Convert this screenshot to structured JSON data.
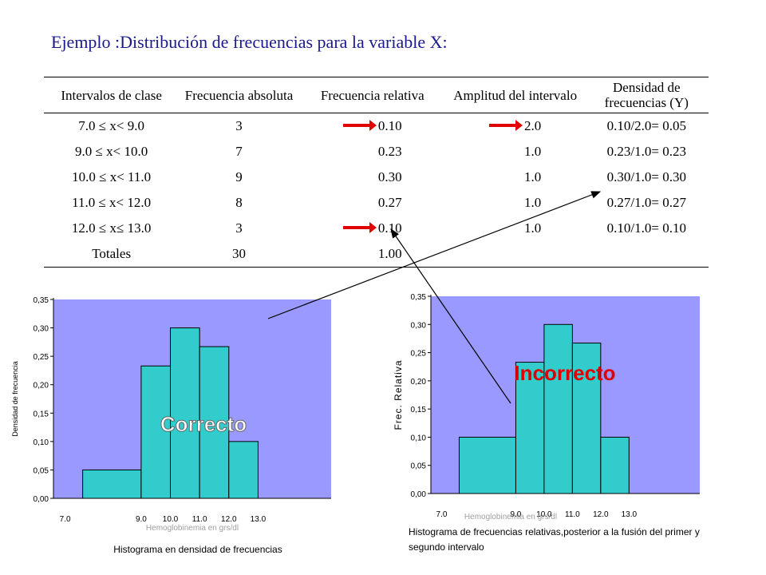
{
  "title": "Ejemplo :Distribución de frecuencias para la variable X:",
  "table": {
    "headers": [
      "Intervalos de clase",
      "Frecuencia absoluta",
      "Frecuencia relativa",
      "Amplitud del intervalo",
      "Densidad de frecuencias (Y)"
    ],
    "rows": [
      {
        "interval": "7.0 ≤ x< 9.0",
        "abs": "3",
        "rel": "0.10",
        "amp": "2.0",
        "dens": "0.10/2.0= 0.05",
        "rel_arrow": true,
        "amp_arrow": true
      },
      {
        "interval": "9.0 ≤ x< 10.0",
        "abs": "7",
        "rel": "0.23",
        "amp": "1.0",
        "dens": "0.23/1.0= 0.23",
        "rel_arrow": false,
        "amp_arrow": false
      },
      {
        "interval": "10.0 ≤ x< 11.0",
        "abs": "9",
        "rel": "0.30",
        "amp": "1.0",
        "dens": "0.30/1.0= 0.30",
        "rel_arrow": false,
        "amp_arrow": false
      },
      {
        "interval": "11.0 ≤ x< 12.0",
        "abs": "8",
        "rel": "0.27",
        "amp": "1.0",
        "dens": "0.27/1.0= 0.27",
        "rel_arrow": false,
        "amp_arrow": false
      },
      {
        "interval": "12.0 ≤ x≤ 13.0",
        "abs": "3",
        "rel": "0.10",
        "amp": "1.0",
        "dens": "0.10/1.0= 0.10",
        "rel_arrow": true,
        "amp_arrow": false
      }
    ],
    "totals": {
      "label": "Totales",
      "abs": "30",
      "rel": "1.00"
    }
  },
  "chart_data": [
    {
      "type": "bar",
      "xlabel": "Hemoglobinemia en grs/dl",
      "ylabel": "Densidad de frecuencia",
      "caption": "Histograma en densidad de frecuencias",
      "overlay_label": "Correcto",
      "ylim": [
        0,
        0.35
      ],
      "y_ticks": [
        0,
        0.05,
        0.1,
        0.15,
        0.2,
        0.25,
        0.3,
        0.35
      ],
      "y_tick_labels": [
        "0,00",
        "0,05",
        "0,10",
        "0,15",
        "0,20",
        "0,25",
        "0,30",
        "0,35"
      ],
      "x_tick_labels": [
        "7.0",
        "9.0",
        "10.0",
        "11.0",
        "12.0",
        "13.0"
      ],
      "bins": [
        {
          "from": 7.0,
          "to": 9.0,
          "value": 0.05
        },
        {
          "from": 9.0,
          "to": 10.0,
          "value": 0.233
        },
        {
          "from": 10.0,
          "to": 11.0,
          "value": 0.3
        },
        {
          "from": 11.0,
          "to": 12.0,
          "value": 0.267
        },
        {
          "from": 12.0,
          "to": 13.0,
          "value": 0.1
        }
      ],
      "colors": {
        "plot_bg": "#9999ff",
        "bar": "#33cccc"
      }
    },
    {
      "type": "bar",
      "xlabel": "Hemoglobinemia en grs/dl",
      "ylabel": "Frec. Relativa",
      "caption": "Histograma de frecuencias relativas,posterior a la fusión del primer y segundo intervalo",
      "overlay_label": "Incorrecto",
      "ylim": [
        0,
        0.35
      ],
      "y_ticks": [
        0,
        0.05,
        0.1,
        0.15,
        0.2,
        0.25,
        0.3,
        0.35
      ],
      "y_tick_labels": [
        "0,00",
        "0,05",
        "0,10",
        "0,15",
        "0,20",
        "0,25",
        "0,30",
        "0,35"
      ],
      "x_tick_labels": [
        "7.0",
        "9.0",
        "10.0",
        "11.0",
        "12.0",
        "13.0"
      ],
      "bins": [
        {
          "from": 7.0,
          "to": 9.0,
          "value": 0.1
        },
        {
          "from": 9.0,
          "to": 10.0,
          "value": 0.233
        },
        {
          "from": 10.0,
          "to": 11.0,
          "value": 0.3
        },
        {
          "from": 11.0,
          "to": 12.0,
          "value": 0.267
        },
        {
          "from": 12.0,
          "to": 13.0,
          "value": 0.1
        }
      ],
      "colors": {
        "plot_bg": "#9999ff",
        "bar": "#33cccc"
      }
    }
  ],
  "colors": {
    "title": "#1a1a8c",
    "arrow_red": "#e00000",
    "correcto_text": "#ffffff",
    "incorrecto_text": "#e00000"
  }
}
